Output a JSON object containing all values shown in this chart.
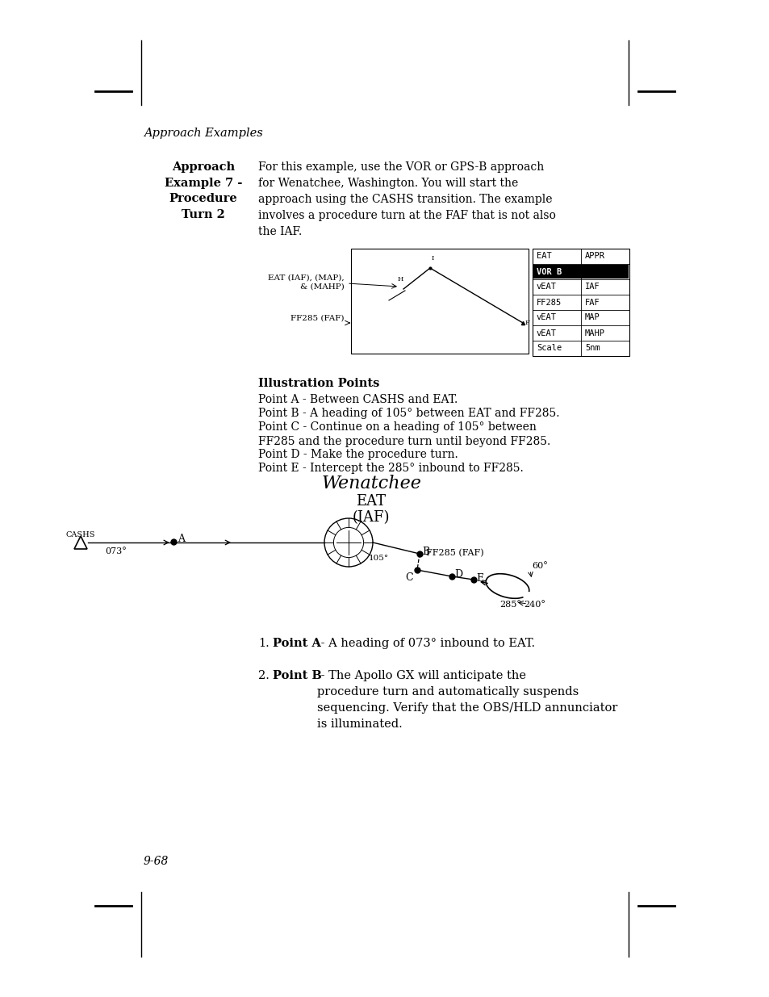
{
  "bg_color": "#ffffff",
  "page_header": "Approach Examples",
  "sidebar_title": "Approach\nExample 7 -\nProcedure\nTurn 2",
  "intro_text": "For this example, use the VOR or GPS-B approach\nfor Wenatchee, Washington. You will start the\napproach using the CASHS transition. The example\ninvolves a procedure turn at the FAF that is not also\nthe IAF.",
  "illus_points_title": "Illustration Points",
  "point_a": "Point A - Between CASHS and EAT.",
  "point_b": "Point B - A heading of 105° between EAT and FF285.",
  "point_c": "Point C - Continue on a heading of 105° between\nFF285 and the procedure turn until beyond FF285.",
  "point_d": "Point D - Make the procedure turn.",
  "point_e": "Point E - Intercept the 285° inbound to FF285.",
  "wenatchee": "Wenatchee",
  "eat_label": "EAT",
  "iaf_label": "(IAF)",
  "cashs_label": "CASHS",
  "label_073": "073°",
  "label_105": "105°",
  "label_60": "60°",
  "label_240": "240°",
  "label_285": "285°",
  "ff285_label": "FF285 (FAF)",
  "eat_iaf_map": "EAT (IAF), (MAP),\n& (MAHP)",
  "ff285_faf": "FF285 (FAF)",
  "num1_title": "Point A",
  "num1_text": " - A heading of 073° inbound to EAT.",
  "num2_title": "Point B",
  "num2_text": " - The Apollo GX will anticipate the\nprocedure turn and automatically suspends\nsequencing. Verify that the OBS/HLD annunciator\nis illuminated.",
  "page_num": "9-68",
  "gps_table_rows": [
    [
      "EAT",
      "APPR",
      false
    ],
    [
      "VOR B",
      "",
      true
    ],
    [
      "vEAT",
      "IAF",
      false
    ],
    [
      "FF285",
      "FAF",
      false
    ],
    [
      "vEAT",
      "MAP",
      false
    ],
    [
      "vEAT",
      "MAHP",
      false
    ],
    [
      "Scale",
      "5nm",
      false
    ]
  ]
}
